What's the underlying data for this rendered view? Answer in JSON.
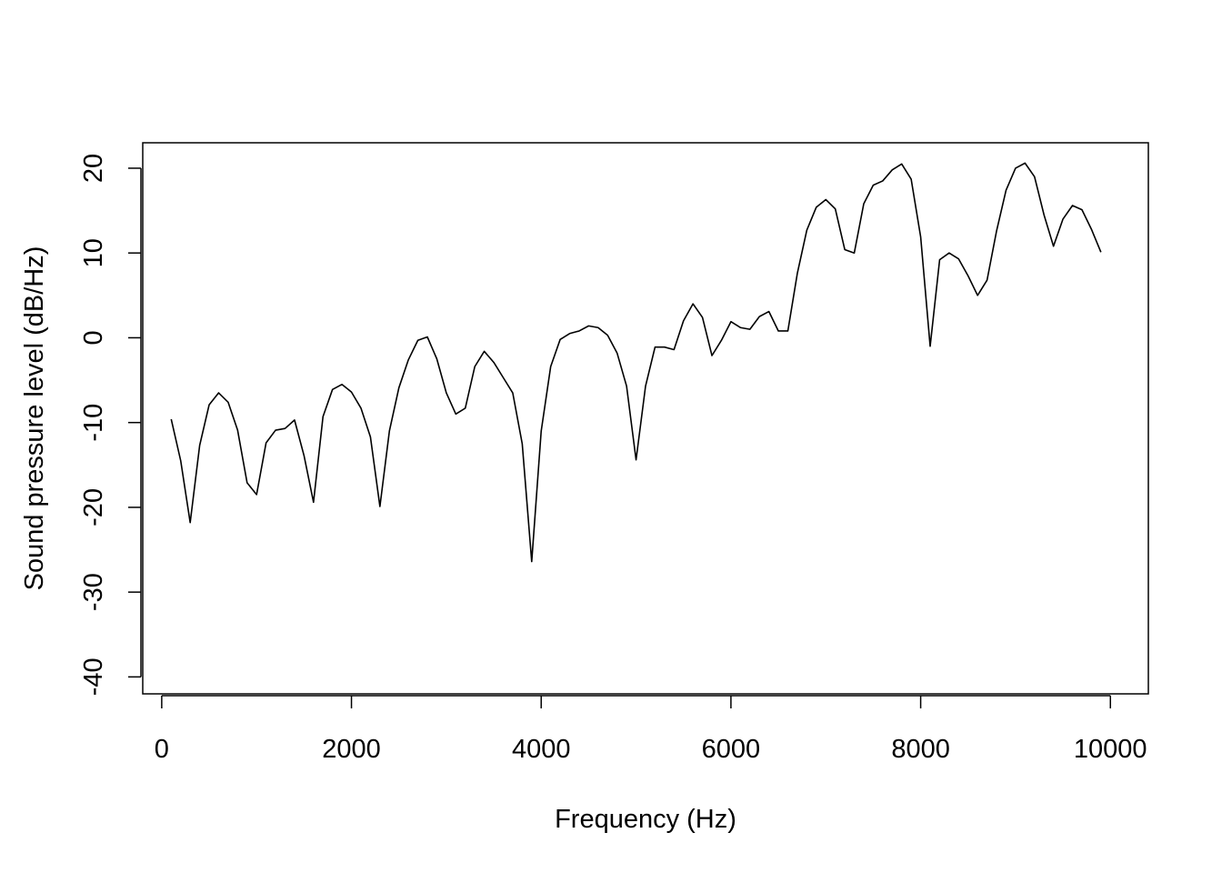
{
  "chart_data": {
    "type": "line",
    "title": "",
    "xlabel": "Frequency (Hz)",
    "ylabel": "Sound pressure level (dB/Hz)",
    "xlim": [
      -200,
      10400
    ],
    "ylim": [
      -42,
      23
    ],
    "xticks": [
      0,
      2000,
      4000,
      6000,
      8000,
      10000
    ],
    "xtick_labels": [
      "0",
      "2000",
      "4000",
      "6000",
      "8000",
      "10000"
    ],
    "yticks": [
      -40,
      -30,
      -20,
      -10,
      0,
      10,
      20
    ],
    "ytick_labels": [
      "-40",
      "-30",
      "-20",
      "-10",
      "0",
      "10",
      "20"
    ],
    "grid": false,
    "line_color": "#000000",
    "series": [
      {
        "x": [
          100,
          200,
          300,
          400,
          500,
          600,
          700,
          800,
          900,
          1000,
          1100,
          1200,
          1300,
          1400,
          1500,
          1600,
          1700,
          1800,
          1900,
          2000,
          2100,
          2200,
          2300,
          2400,
          2500,
          2600,
          2700,
          2800,
          2900,
          3000,
          3100,
          3200,
          3300,
          3400,
          3500,
          3600,
          3700,
          3800,
          3900,
          4000,
          4100,
          4200,
          4300,
          4400,
          4500,
          4600,
          4700,
          4800,
          4900,
          5000,
          5100,
          5200,
          5300,
          5400,
          5500,
          5600,
          5700,
          5800,
          5900,
          6000,
          6100,
          6200,
          6300,
          6400,
          6500,
          6600,
          6700,
          6800,
          6900,
          7000,
          7100,
          7200,
          7300,
          7400,
          7500,
          7600,
          7700,
          7800,
          7900,
          8000,
          8100,
          8200,
          8300,
          8400,
          8500,
          8600,
          8700,
          8800,
          8900,
          9000,
          9100,
          9200,
          9300,
          9400,
          9500,
          9600,
          9700,
          9800,
          9900
        ],
        "y": [
          -9.6,
          -14.5,
          -21.8,
          -12.7,
          -7.9,
          -6.5,
          -7.6,
          -10.9,
          -17.1,
          -18.5,
          -12.4,
          -10.9,
          -10.7,
          -9.7,
          -13.9,
          -19.4,
          -9.3,
          -6.1,
          -5.5,
          -6.4,
          -8.3,
          -11.7,
          -19.9,
          -11.0,
          -5.9,
          -2.6,
          -0.3,
          0.1,
          -2.5,
          -6.5,
          -9.0,
          -8.3,
          -3.4,
          -1.6,
          -2.9,
          -4.7,
          -6.5,
          -12.5,
          -26.4,
          -11.0,
          -3.4,
          -0.2,
          0.5,
          0.8,
          1.4,
          1.2,
          0.3,
          -1.8,
          -5.7,
          -14.4,
          -5.7,
          -1.1,
          -1.1,
          -1.4,
          2.0,
          4.0,
          2.4,
          -2.1,
          -0.3,
          1.9,
          1.2,
          1.0,
          2.5,
          3.1,
          0.8,
          0.8,
          7.6,
          12.7,
          15.4,
          16.3,
          15.2,
          10.4,
          10.0,
          15.8,
          18.0,
          18.5,
          19.8,
          20.5,
          18.7,
          11.9,
          -1.0,
          9.2,
          10.0,
          9.3,
          7.3,
          5.0,
          6.8,
          12.6,
          17.4,
          20.0,
          20.6,
          19.0,
          14.5,
          10.8,
          14.0,
          15.6,
          15.1,
          12.8,
          10.1
        ]
      }
    ]
  }
}
